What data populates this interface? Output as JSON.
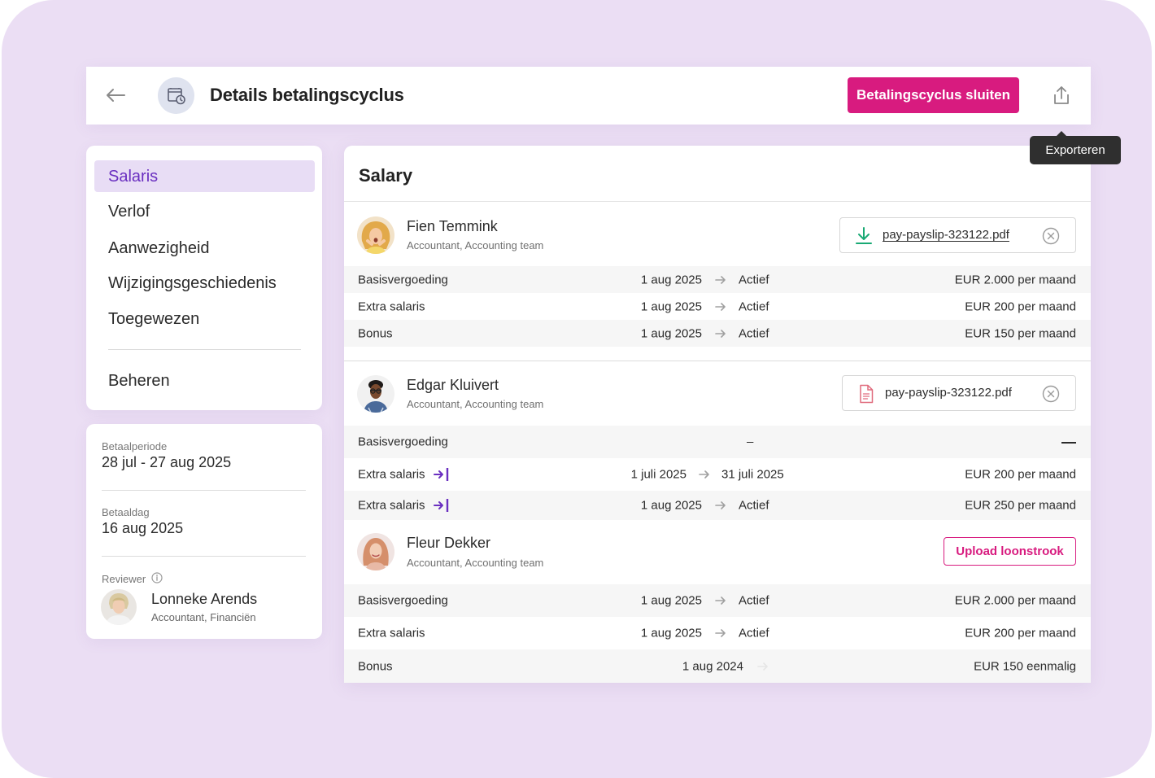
{
  "header": {
    "title": "Details betalingscyclus",
    "primary_action": "Betalingscyclus sluiten",
    "export_tooltip": "Exporteren"
  },
  "nav": {
    "items": [
      {
        "label": "Salaris",
        "active": true
      },
      {
        "label": "Verlof"
      },
      {
        "label": "Aanwezigheid"
      },
      {
        "label": "Wijzigingsgeschiedenis"
      },
      {
        "label": "Toegewezen"
      }
    ],
    "manage_label": "Beheren"
  },
  "info": {
    "period_label": "Betaalperiode",
    "period_value": "28 jul - 27 aug 2025",
    "payday_label": "Betaaldag",
    "payday_value": "16 aug 2025",
    "reviewer_label": "Reviewer",
    "reviewer_name": "Lonneke Arends",
    "reviewer_role": "Accountant, Financiën"
  },
  "salary": {
    "title": "Salary",
    "employees": [
      {
        "name": "Fien Temmink",
        "role": "Accountant, Accounting team",
        "file": "pay-payslip-323122.pdf",
        "rows": [
          {
            "type": "Basisvergoeding",
            "start": "1 aug 2025",
            "end": "Actief",
            "amount": "EUR 2.000 per maand"
          },
          {
            "type": "Extra salaris",
            "start": "1 aug 2025",
            "end": "Actief",
            "amount": "EUR 200 per maand"
          },
          {
            "type": "Bonus",
            "start": "1 aug 2025",
            "end": "Actief",
            "amount": "EUR 150 per maand"
          }
        ]
      },
      {
        "name": "Edgar Kluivert",
        "role": "Accountant, Accounting team",
        "file": "pay-payslip-323122.pdf",
        "rows": [
          {
            "type": "Basisvergoeding",
            "start": "–",
            "end": "",
            "amount": ""
          },
          {
            "type": "Extra salaris",
            "start": "1 juli 2025",
            "end": "31 juli 2025",
            "amount": "EUR 200 per maand"
          },
          {
            "type": "Extra salaris",
            "start": "1 aug 2025",
            "end": "Actief",
            "amount": "EUR 250 per maand"
          }
        ]
      },
      {
        "name": "Fleur Dekker",
        "role": "Accountant, Accounting team",
        "upload_label": "Upload loonstrook",
        "rows": [
          {
            "type": "Basisvergoeding",
            "start": "1 aug 2025",
            "end": "Actief",
            "amount": "EUR 2.000 per maand"
          },
          {
            "type": "Extra salaris",
            "start": "1 aug 2025",
            "end": "Actief",
            "amount": "EUR 200 per maand"
          },
          {
            "type": "Bonus",
            "start": "1 aug 2024",
            "end": "",
            "amount": "EUR 150 eenmalig"
          }
        ]
      }
    ]
  },
  "colors": {
    "brand_pink": "#d81b7f",
    "active_purple": "#6a2fc0",
    "active_bg": "#e8ddf5",
    "background": "#ebdef4"
  }
}
